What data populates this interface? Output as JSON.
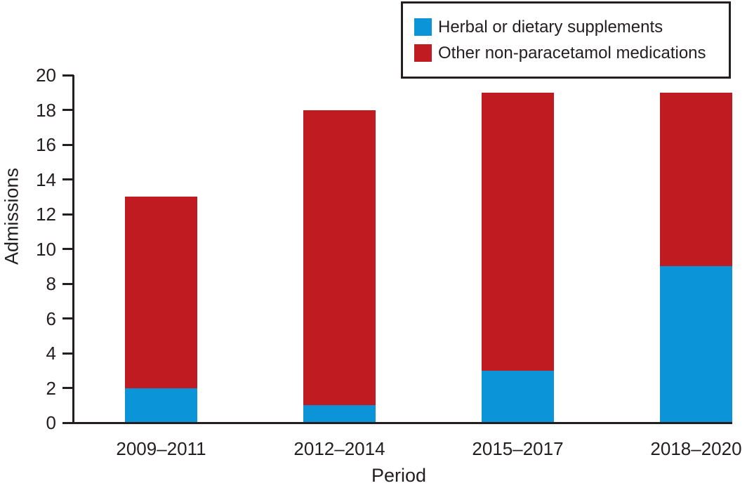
{
  "chart_data": {
    "type": "bar",
    "stacked": true,
    "title": "",
    "categories": [
      "2009–2011",
      "2012–2014",
      "2015–2017",
      "2018–2020"
    ],
    "series": [
      {
        "name": "Herbal or dietary supplements",
        "color": "#0b95d8",
        "values": [
          2,
          1,
          3,
          9
        ]
      },
      {
        "name": "Other non-paracetamol medications",
        "color": "#c01b20",
        "values": [
          11,
          17,
          16,
          10
        ]
      }
    ],
    "stack_totals": [
      13,
      18,
      19,
      19
    ],
    "xlabel": "Period",
    "ylabel": "Admissions",
    "ylim": [
      0,
      20
    ],
    "yticks": [
      0,
      2,
      4,
      6,
      8,
      10,
      12,
      14,
      16,
      18,
      20
    ],
    "grid": false,
    "legend_position": "top-right"
  },
  "colors": {
    "axis_line": "#231f20",
    "text": "#231f20",
    "legend_border": "#231f20",
    "background": "#ffffff",
    "herbal_blue": "#0b95d8",
    "other_red": "#c01b20"
  }
}
